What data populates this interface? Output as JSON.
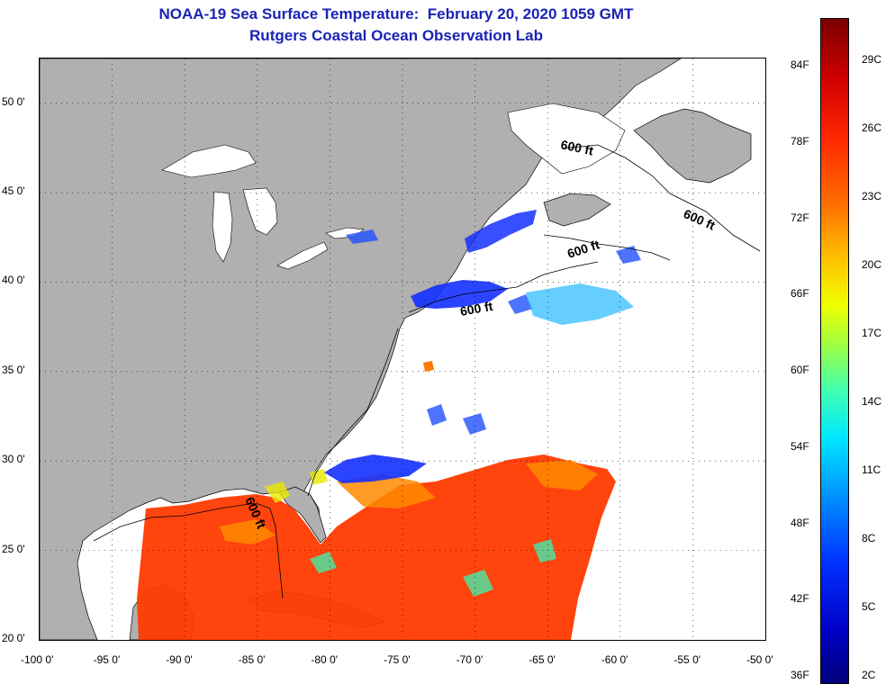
{
  "title": {
    "line1": "NOAA-19 Sea Surface Temperature:  February 20, 2020 1059 GMT",
    "line2": "Rutgers Coastal Ocean Observation Lab"
  },
  "map": {
    "lon_range": [
      -100,
      -50
    ],
    "lat_range": [
      20,
      52.5
    ],
    "lon_ticks": [
      "-100 0'",
      "-95 0'",
      "-90 0'",
      "-85 0'",
      "-80 0'",
      "-75 0'",
      "-70 0'",
      "-65 0'",
      "-60 0'",
      "-55 0'",
      "-50 0'"
    ],
    "lat_ticks": [
      "50 0'",
      "45 0'",
      "40 0'",
      "35 0'",
      "30 0'",
      "25 0'",
      "20 0'"
    ],
    "grid": "dotted",
    "land_color": "#b0b0b0",
    "ocean_color": "#ffffff",
    "isobath_labels": [
      "600 ft",
      "600 ft",
      "600 ft",
      "600 ft",
      "600 ft"
    ]
  },
  "colorbar": {
    "fahrenheit_labels": [
      "84F",
      "78F",
      "72F",
      "66F",
      "60F",
      "54F",
      "48F",
      "42F",
      "36F"
    ],
    "celsius_labels": [
      "29C",
      "26C",
      "23C",
      "20C",
      "17C",
      "14C",
      "11C",
      "8C",
      "5C",
      "2C"
    ],
    "range_celsius": [
      2,
      31
    ],
    "colors": {
      "cold": "#00007a",
      "cool": "#0030ff",
      "mid": "#40ffb0",
      "warm": "#ffc000",
      "hot": "#ff2800",
      "max": "#7a0000"
    }
  }
}
